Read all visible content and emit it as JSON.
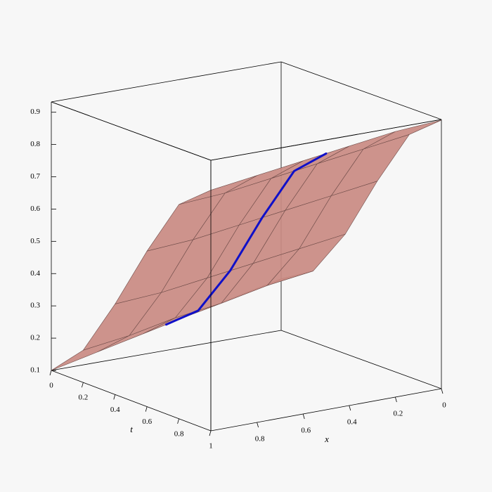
{
  "chart_data": {
    "type": "surface3d",
    "x_label": "x",
    "t_label": "t",
    "xlim": [
      0,
      1
    ],
    "tlim": [
      0,
      1
    ],
    "zlim": [
      0.1,
      0.932
    ],
    "xticks": [
      0,
      0.2,
      0.4,
      0.6,
      0.8
    ],
    "tticks": [
      0,
      0.2,
      0.4,
      0.6,
      0.8,
      1
    ],
    "zticks": [
      0.1,
      0.2,
      0.3,
      0.4,
      0.5,
      0.6,
      0.7,
      0.8,
      0.9
    ],
    "surface": {
      "color": "#c98a82",
      "mesh_color": "#6e4c49",
      "x": [
        0,
        0.2,
        0.4,
        0.6,
        0.8,
        1
      ],
      "t": [
        0,
        0.2,
        0.4,
        0.6,
        0.8,
        1
      ],
      "z": [
        [
          0.26,
          0.228,
          0.196,
          0.164,
          0.132,
          0.1
        ],
        [
          0.32,
          0.3,
          0.27,
          0.25,
          0.22,
          0.2
        ],
        [
          0.47,
          0.45,
          0.43,
          0.41,
          0.39,
          0.38
        ],
        [
          0.67,
          0.65,
          0.63,
          0.61,
          0.59,
          0.58
        ],
        [
          0.85,
          0.83,
          0.81,
          0.79,
          0.77,
          0.76
        ],
        [
          0.93,
          0.92,
          0.9,
          0.88,
          0.86,
          0.84
        ]
      ]
    },
    "curve": {
      "color": "#1010c8",
      "x": [
        0.5,
        0.5,
        0.5,
        0.5,
        0.5,
        0.5
      ],
      "t": [
        0,
        0.2,
        0.4,
        0.6,
        0.8,
        1
      ],
      "z": [
        0.18,
        0.26,
        0.42,
        0.62,
        0.8,
        0.89
      ]
    }
  }
}
